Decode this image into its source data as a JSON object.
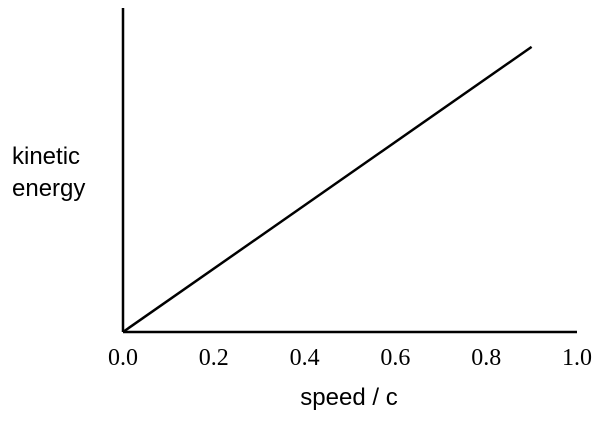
{
  "chart_data": {
    "type": "line",
    "title": "",
    "xlabel": "speed / c",
    "ylabel_lines": [
      "kinetic",
      "energy"
    ],
    "xlim": [
      0,
      1.0
    ],
    "ylim": [
      0,
      1.0
    ],
    "x_ticks": [
      "0.0",
      "0.2",
      "0.4",
      "0.6",
      "0.8",
      "1.0"
    ],
    "y_ticks": [],
    "grid": false,
    "series": [
      {
        "x": [
          0.0,
          0.9
        ],
        "y": [
          0.0,
          0.88
        ]
      }
    ]
  }
}
